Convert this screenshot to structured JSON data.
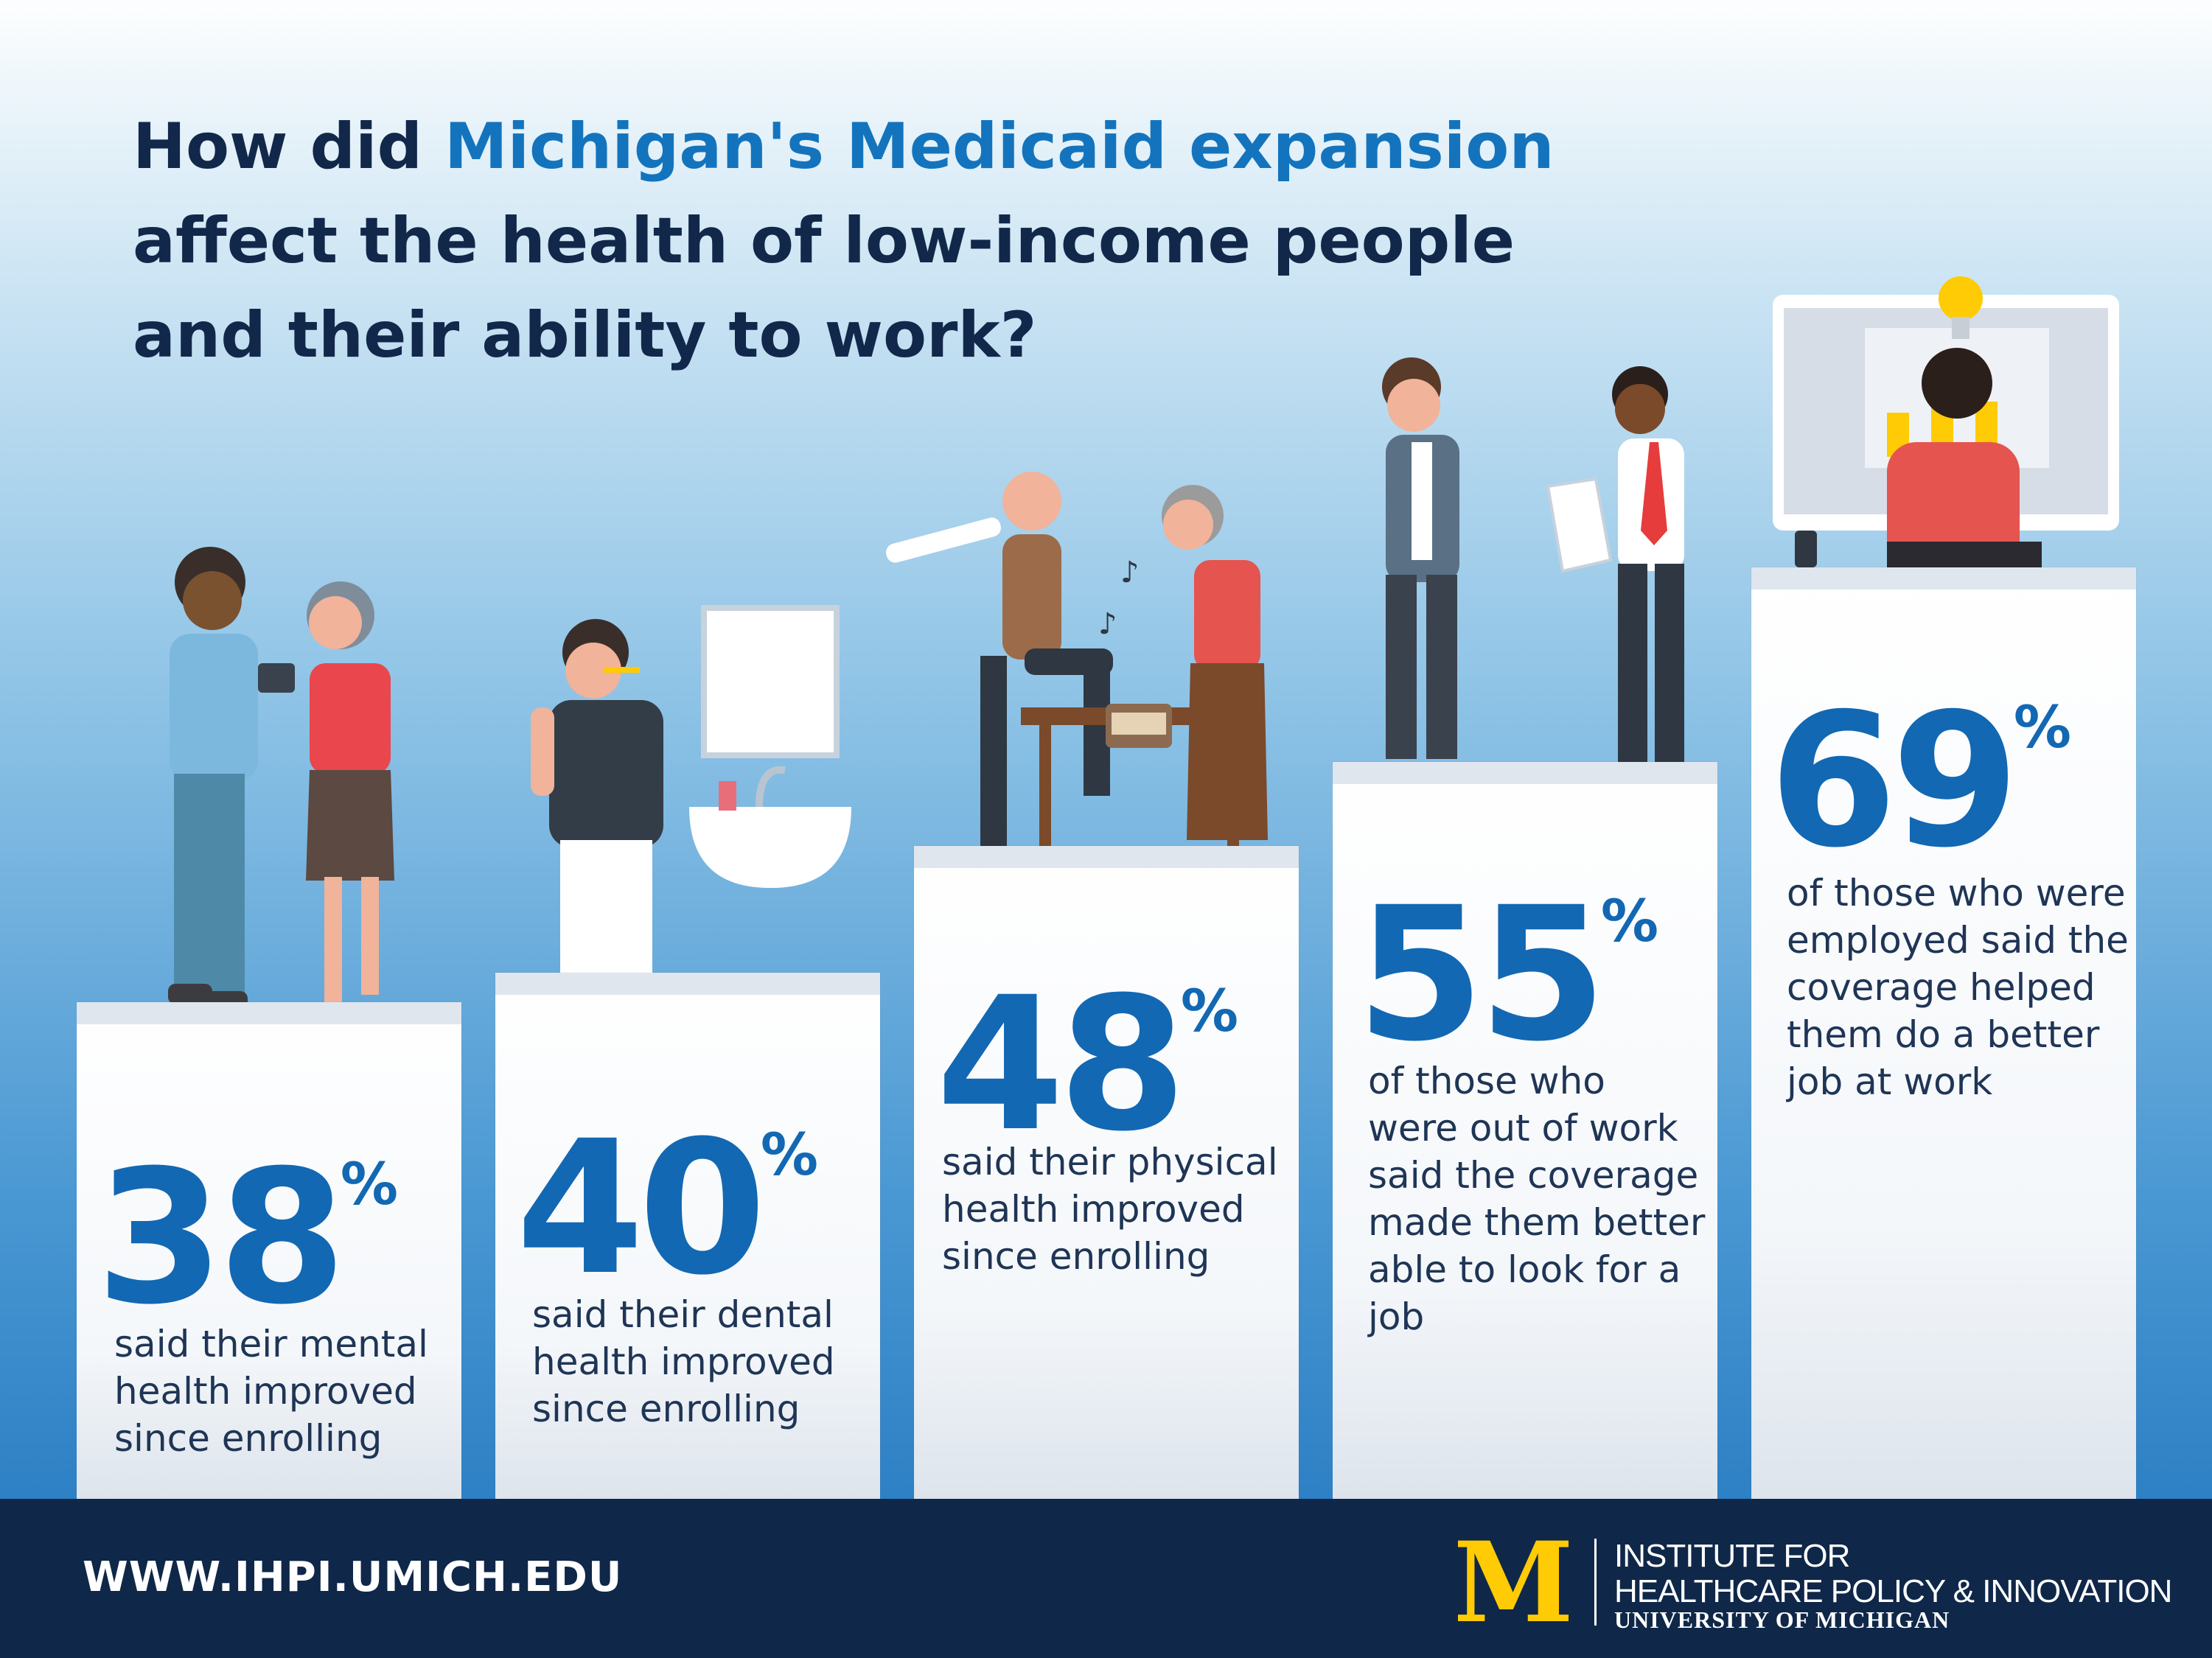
{
  "title": {
    "line1_prefix": "How did ",
    "line1_highlight": "Michigan's Medicaid expansion",
    "line2": "affect the health of low-income people",
    "line3": "and their ability to work?"
  },
  "chart_data": {
    "type": "bar",
    "title": "How did Michigan's Medicaid expansion affect the health of low-income people and their ability to work?",
    "categories": [
      "said their mental health improved since enrolling",
      "said their dental health improved since enrolling",
      "said their physical health improved since enrolling",
      "of those who were out of work said the coverage made them better able to look for a job",
      "of those who were employed said the coverage helped them do a better job at work"
    ],
    "values": [
      38,
      40,
      48,
      55,
      69
    ],
    "unit": "%",
    "ylim": [
      0,
      100
    ]
  },
  "stats": [
    {
      "value": "38",
      "unit": "%",
      "lines": [
        "said their mental",
        "health improved",
        "since enrolling"
      ]
    },
    {
      "value": "40",
      "unit": "%",
      "lines": [
        "said their dental",
        "health improved",
        "since enrolling"
      ]
    },
    {
      "value": "48",
      "unit": "%",
      "lines": [
        "said their physical",
        "health improved",
        "since enrolling"
      ]
    },
    {
      "value": "55",
      "unit": "%",
      "lines": [
        "of those who",
        "were out of work",
        "said the coverage",
        "made them better",
        "able to look for a",
        "job"
      ]
    },
    {
      "value": "69",
      "unit": "%",
      "lines": [
        "of those who were",
        "employed said the",
        "coverage helped",
        "them do a better",
        "job at work"
      ]
    }
  ],
  "footer": {
    "url": "WWW.IHPI.UMICH.EDU",
    "logo_letter": "M",
    "institute_line1": "INSTITUTE FOR",
    "institute_line2": "HEALTHCARE POLICY & INNOVATION",
    "university": "UNIVERSITY OF MICHIGAN"
  },
  "colors": {
    "title": "#12284a",
    "highlight": "#1374bd",
    "stat": "#1268b3",
    "footer": "#0f2748",
    "maize": "#ffcb05"
  }
}
